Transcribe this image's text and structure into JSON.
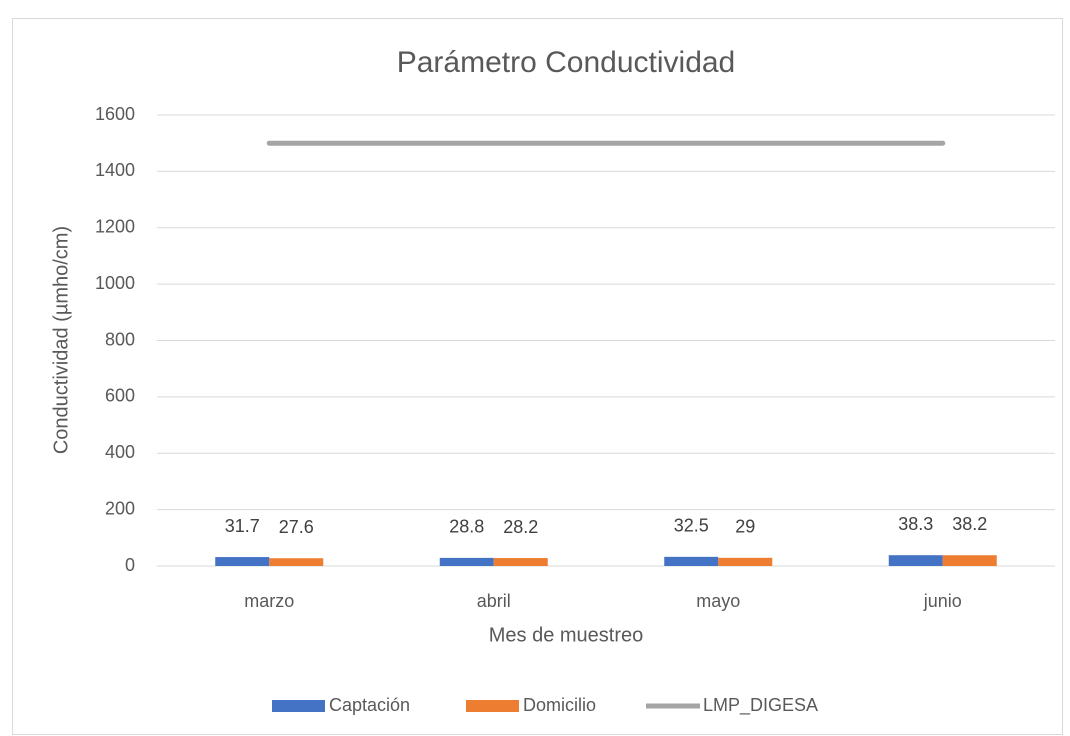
{
  "chart_data": {
    "type": "bar",
    "title": "Parámetro Conductividad",
    "x_label": "Mes de muestreo",
    "y_label": "Conductividad (µmho/cm)",
    "categories": [
      "marzo",
      "abril",
      "mayo",
      "junio"
    ],
    "series": [
      {
        "name": "Captación",
        "color": "#4472c4",
        "values": [
          31.7,
          28.8,
          32.5,
          38.3
        ]
      },
      {
        "name": "Domicilio",
        "color": "#ed7d31",
        "values": [
          27.6,
          28.2,
          29,
          38.2
        ]
      },
      {
        "name": "LMP_DIGESA",
        "color": "#a5a5a5",
        "type": "line",
        "values": [
          1500,
          1500,
          1500,
          1500
        ]
      }
    ],
    "ylim": [
      0,
      1600
    ],
    "yticks": [
      0,
      200,
      400,
      600,
      800,
      1000,
      1200,
      1400,
      1600
    ],
    "grid": true,
    "legend": "bottom"
  }
}
